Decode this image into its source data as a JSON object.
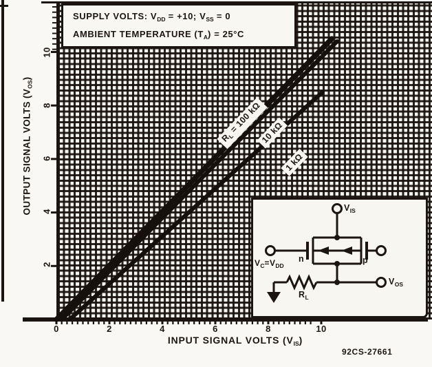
{
  "conditions": {
    "line1": {
      "t1": "SUPPLY VOLTS: V",
      "s1": "DD",
      "t2": " = +10; V",
      "s2": "SS",
      "t3": " = 0"
    },
    "line2": {
      "t1": "AMBIENT TEMPERATURE (T",
      "s1": "A",
      "t2": ") = 25°C"
    }
  },
  "axis_x": {
    "label": {
      "t1": "INPUT SIGNAL VOLTS (V",
      "s1": "IS",
      "t2": ")"
    },
    "ticks": [
      "0",
      "2",
      "4",
      "6",
      "8",
      "10"
    ]
  },
  "axis_y": {
    "label": {
      "t1": "OUTPUT SIGNAL VOLTS (V",
      "s1": "OS",
      "t2": ")"
    },
    "ticks": [
      "10",
      "8",
      "6",
      "4",
      "2"
    ]
  },
  "curve_labels": {
    "r100k": {
      "t1": "R",
      "s1": "L",
      "t2": " = 100 kΩ"
    },
    "r10k": {
      "t1": "10 kΩ"
    },
    "r1k": {
      "t1": "1 kΩ"
    }
  },
  "inset_labels": {
    "vis": {
      "t1": "V",
      "s1": "IS"
    },
    "vos": {
      "t1": "V",
      "s1": "OS"
    },
    "vc": {
      "t1": "V",
      "s1": "C",
      "t2": "=V",
      "s2": "DD"
    },
    "n": "n",
    "p": "p",
    "rl": {
      "t1": "R",
      "s1": "L"
    }
  },
  "figure_code": "92CS-27661",
  "chart_data": {
    "type": "line",
    "title": "Output signal volts vs input signal volts (CMOS transmission gate)",
    "conditions": "VDD = +10 V; VSS = 0; TA = 25 °C",
    "xlabel": "INPUT SIGNAL VOLTS (VIS)",
    "ylabel": "OUTPUT SIGNAL VOLTS (VOS)",
    "xlim": [
      0,
      10
    ],
    "ylim": [
      0,
      10
    ],
    "x_ticks": [
      0,
      2,
      4,
      6,
      8,
      10
    ],
    "y_ticks": [
      0,
      2,
      4,
      6,
      8,
      10
    ],
    "grid": "fine square mesh over full plot area",
    "legend_position": "labels along curves",
    "series": [
      {
        "name": "RL = 100 kΩ",
        "points": [
          [
            0,
            0
          ],
          [
            10.4,
            10.5
          ]
        ]
      },
      {
        "name": "RL = 10 kΩ",
        "points": [
          [
            0.2,
            0
          ],
          [
            10.6,
            10.4
          ]
        ]
      },
      {
        "name": "RL = 1 kΩ",
        "points": [
          [
            0.5,
            0
          ],
          [
            10.05,
            8.5
          ]
        ]
      }
    ],
    "annotation": "92CS-27661",
    "inset": "Test circuit: VIS source at top into n/p transmission gate, control VC = VDD, load resistor RL from output node to ground, output VOS"
  }
}
